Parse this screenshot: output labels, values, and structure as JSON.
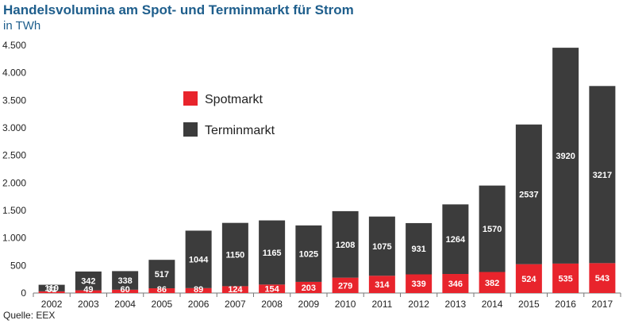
{
  "chart_data": {
    "type": "bar",
    "stacked": true,
    "title": "Handelsvolumina am Spot- und Terminmarkt für Strom",
    "subtitle": "in TWh",
    "source": "Quelle: EEX",
    "categories": [
      "2002",
      "2003",
      "2004",
      "2005",
      "2006",
      "2007",
      "2008",
      "2009",
      "2010",
      "2011",
      "2012",
      "2013",
      "2014",
      "2015",
      "2016",
      "2017"
    ],
    "series": [
      {
        "name": "Spotmarkt",
        "color": "#e8242c",
        "values": [
          31,
          49,
          60,
          86,
          89,
          124,
          154,
          203,
          279,
          314,
          339,
          346,
          382,
          524,
          535,
          543
        ],
        "labels": [
          "31",
          "49",
          "60",
          "86",
          "89",
          "124",
          "154",
          "203",
          "279",
          "314",
          "339",
          "346",
          "382",
          "524",
          "535",
          "543"
        ]
      },
      {
        "name": "Terminmarkt",
        "color": "#3c3c3c",
        "values": [
          119,
          342,
          338,
          517,
          1044,
          1150,
          1165,
          1025,
          1208,
          1075,
          931,
          1264,
          1570,
          2537,
          3920,
          3217
        ],
        "labels": [
          "119",
          "342",
          "338",
          "517",
          "1044",
          "1150",
          "1165",
          "1025",
          "1208",
          "1075",
          "931",
          "1264",
          "1570",
          "2537",
          "3920",
          "3217"
        ]
      }
    ],
    "yticks": [
      {
        "value": 0,
        "label": "0"
      },
      {
        "value": 500,
        "label": "500"
      },
      {
        "value": 1000,
        "label": "1.000"
      },
      {
        "value": 1500,
        "label": "1.500"
      },
      {
        "value": 2000,
        "label": "2.000"
      },
      {
        "value": 2500,
        "label": "2.500"
      },
      {
        "value": 3000,
        "label": "3.000"
      },
      {
        "value": 3500,
        "label": "3.500"
      },
      {
        "value": 4000,
        "label": "4.000"
      },
      {
        "value": 4500,
        "label": "4.500"
      }
    ],
    "ylim": [
      0,
      4500
    ],
    "legend_position": "top-left",
    "grid": false
  }
}
